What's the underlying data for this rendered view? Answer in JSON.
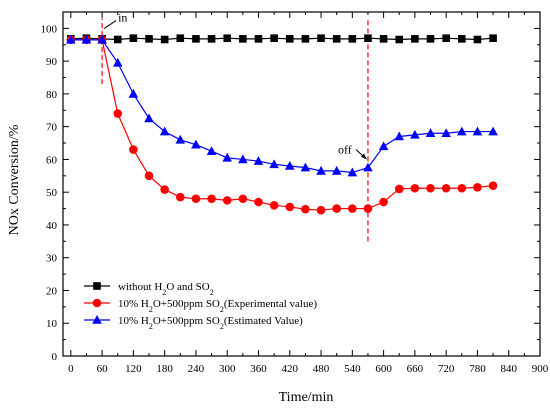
{
  "chart_data": {
    "type": "line",
    "xlabel": "Time/min",
    "ylabel": "NOx Conversion/%",
    "xlim": [
      -15,
      900
    ],
    "ylim": [
      0,
      105
    ],
    "xticks": [
      0,
      60,
      120,
      180,
      240,
      300,
      360,
      420,
      480,
      540,
      600,
      660,
      720,
      780,
      840,
      900
    ],
    "yticks": [
      0,
      10,
      20,
      30,
      40,
      50,
      60,
      70,
      80,
      90,
      100
    ],
    "grid": false,
    "legend_position": "bottom-left",
    "series": [
      {
        "name_parts": [
          {
            "t": "without H"
          },
          {
            "t": "2",
            "sub": true
          },
          {
            "t": "O and SO"
          },
          {
            "t": "2",
            "sub": true
          }
        ],
        "marker": "square",
        "color": "#000000",
        "x": [
          0,
          30,
          60,
          90,
          120,
          150,
          180,
          210,
          240,
          270,
          300,
          330,
          360,
          390,
          420,
          450,
          480,
          510,
          540,
          570,
          600,
          630,
          660,
          690,
          720,
          750,
          780,
          810
        ],
        "y": [
          96.8,
          97.0,
          96.8,
          96.6,
          97.0,
          96.8,
          96.6,
          97.0,
          96.8,
          96.8,
          97.0,
          96.8,
          96.8,
          97.0,
          96.8,
          96.8,
          97.0,
          96.8,
          96.8,
          97.0,
          96.8,
          96.6,
          96.8,
          96.8,
          97.0,
          96.8,
          96.6,
          97.0
        ]
      },
      {
        "name_parts": [
          {
            "t": "10% H"
          },
          {
            "t": "2",
            "sub": true
          },
          {
            "t": "O+500ppm SO"
          },
          {
            "t": "2",
            "sub": true
          },
          {
            "t": "(Experimental value)"
          }
        ],
        "marker": "circle",
        "color": "#ff0000",
        "x": [
          0,
          30,
          60,
          90,
          120,
          150,
          180,
          210,
          240,
          270,
          300,
          330,
          360,
          390,
          420,
          450,
          480,
          510,
          540,
          570,
          600,
          630,
          660,
          690,
          720,
          750,
          780,
          810
        ],
        "y": [
          96.5,
          96.5,
          96.5,
          74.0,
          63.0,
          55.0,
          50.8,
          48.5,
          48.0,
          48.0,
          47.5,
          48.0,
          47.0,
          46.0,
          45.5,
          44.8,
          44.5,
          45.0,
          45.0,
          45.0,
          47.0,
          51.0,
          51.2,
          51.2,
          51.2,
          51.2,
          51.5,
          52.0
        ]
      },
      {
        "name_parts": [
          {
            "t": "10% H"
          },
          {
            "t": "2",
            "sub": true
          },
          {
            "t": "O+500ppm SO"
          },
          {
            "t": "2",
            "sub": true
          },
          {
            "t": "(Estimated Value)"
          }
        ],
        "marker": "triangle",
        "color": "#0000ff",
        "x": [
          0,
          30,
          60,
          90,
          120,
          150,
          180,
          210,
          240,
          270,
          300,
          330,
          360,
          390,
          420,
          450,
          480,
          510,
          540,
          570,
          600,
          630,
          660,
          690,
          720,
          750,
          780,
          810
        ],
        "y": [
          96.5,
          96.5,
          96.5,
          89.5,
          80.0,
          72.5,
          68.5,
          66.0,
          64.5,
          62.5,
          60.5,
          60.0,
          59.5,
          58.5,
          58.0,
          57.5,
          56.5,
          56.5,
          56.0,
          57.5,
          64.0,
          67.0,
          67.5,
          68.0,
          68.0,
          68.5,
          68.5,
          68.5
        ]
      }
    ],
    "annotations": [
      {
        "text": "in",
        "x": 60,
        "y": 103
      },
      {
        "text": "off",
        "x": 570,
        "y": 63
      }
    ],
    "reference_lines": [
      {
        "x": 60,
        "y_from": 83,
        "y_to": 103,
        "style": "dashed",
        "color": "#ff0000"
      },
      {
        "x": 570,
        "y_from": 35,
        "y_to": 103,
        "style": "dashed",
        "color": "#ff0000"
      }
    ]
  }
}
